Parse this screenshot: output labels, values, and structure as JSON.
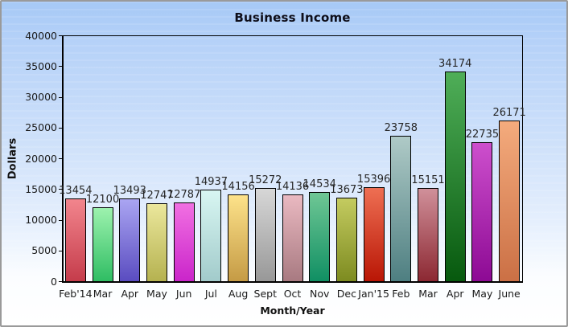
{
  "chart_data": {
    "type": "bar",
    "title": "Business Income",
    "xlabel": "Month/Year",
    "ylabel": "Dollars",
    "ylim": [
      0,
      40000
    ],
    "yticks": [
      0,
      5000,
      10000,
      15000,
      20000,
      25000,
      30000,
      35000,
      40000
    ],
    "grid": false,
    "legend": "none",
    "categories": [
      "Feb'14",
      "Mar",
      "Apr",
      "May",
      "Jun",
      "Jul",
      "Aug",
      "Sept",
      "Oct",
      "Nov",
      "Dec",
      "Jan'15",
      "Feb",
      "Mar",
      "Apr",
      "May",
      "June"
    ],
    "values": [
      13454,
      12100,
      13493,
      12747,
      12787,
      14937,
      14156,
      15272,
      14136,
      14534,
      13673,
      15396,
      23758,
      15151,
      34174,
      22735,
      26171
    ],
    "bar_colors": [
      {
        "top": "#f2858d",
        "bottom": "#c53c4b"
      },
      {
        "top": "#9df2ae",
        "bottom": "#2fbd63"
      },
      {
        "top": "#aaa5f2",
        "bottom": "#5a4cc0"
      },
      {
        "top": "#ebe79c",
        "bottom": "#b5b250"
      },
      {
        "top": "#f170e2",
        "bottom": "#ca25ca"
      },
      {
        "top": "#d8f6f2",
        "bottom": "#a2cbcb"
      },
      {
        "top": "#fde28a",
        "bottom": "#c59b45"
      },
      {
        "top": "#d7d7d7",
        "bottom": "#989898"
      },
      {
        "top": "#eab9c1",
        "bottom": "#a87a81"
      },
      {
        "top": "#6fc795",
        "bottom": "#108f63"
      },
      {
        "top": "#c4cb60",
        "bottom": "#7d8b20"
      },
      {
        "top": "#ee6f53",
        "bottom": "#b91605"
      },
      {
        "top": "#afcac7",
        "bottom": "#4e7f81"
      },
      {
        "top": "#d0909a",
        "bottom": "#8c2832"
      },
      {
        "top": "#4fae58",
        "bottom": "#07590e"
      },
      {
        "top": "#cd4fcd",
        "bottom": "#8d0a94"
      },
      {
        "top": "#f4ab7d",
        "bottom": "#cb7045"
      }
    ],
    "colors_meta": {
      "frame_border": "#9a9a9a",
      "axis_line": "#000000",
      "background_top": "#a6c9f6",
      "background_bottom": "#ffffff",
      "text": "#1a1a1a"
    }
  }
}
